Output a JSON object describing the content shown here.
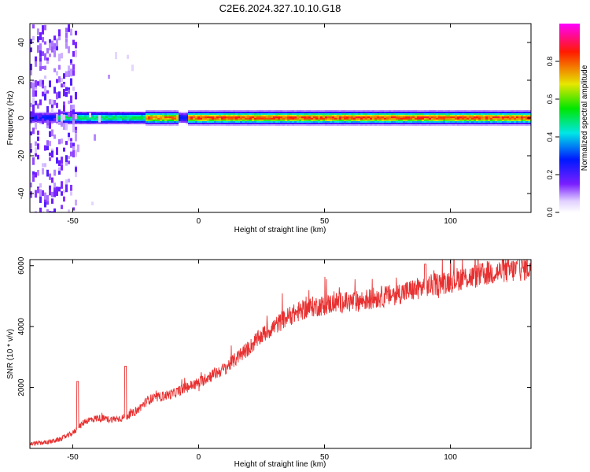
{
  "title": "C2E6.2024.327.10.10.G18",
  "chart_data": [
    {
      "type": "heatmap",
      "title": "C2E6.2024.327.10.10.G18",
      "xlabel": "Height of straight line (km)",
      "ylabel": "Frequency (Hz)",
      "xlim": [
        -67,
        132
      ],
      "ylim": [
        -50,
        50
      ],
      "xticks": [
        "-50",
        "0",
        "50",
        "100"
      ],
      "yticks": [
        "-40",
        "-20",
        "0",
        "20",
        "40"
      ],
      "colorbar": {
        "label": "Normalized spectral amplitude",
        "range": [
          0,
          1
        ],
        "ticks": [
          "0.0",
          "0.2",
          "0.4",
          "0.6",
          "0.8"
        ],
        "colormap": "rainbow (violet-blue-cyan-green-yellow-red-magenta)"
      },
      "signal_band": {
        "center_frequency_hz": 0.5,
        "half_width_hz": 3,
        "segments": [
          {
            "x_start": -56,
            "x_end": -22,
            "peak_amplitude": 0.55
          },
          {
            "x_start": -22,
            "x_end": -8,
            "peak_amplitude": 0.85
          },
          {
            "x_start": -5,
            "x_end": 132,
            "peak_amplitude": 0.9
          }
        ]
      },
      "noise_region": {
        "x_start": -67,
        "x_end": -49,
        "amplitude": 0.15
      }
    },
    {
      "type": "line",
      "xlabel": "Height of straight line (km)",
      "ylabel": "SNR (10 * v/v)",
      "xlim": [
        -67,
        132
      ],
      "ylim": [
        0,
        6200
      ],
      "xticks": [
        "-50",
        "0",
        "50",
        "100"
      ],
      "yticks": [
        "2000",
        "4000",
        "6000"
      ],
      "color": "#e83030",
      "trend": {
        "x": [
          -67,
          -60,
          -55,
          -50,
          -45,
          -40,
          -35,
          -30,
          -25,
          -20,
          -15,
          -10,
          -5,
          0,
          5,
          10,
          15,
          20,
          25,
          30,
          35,
          40,
          45,
          50,
          55,
          60,
          65,
          70,
          75,
          80,
          85,
          90,
          95,
          100,
          105,
          110,
          115,
          120,
          125,
          132
        ],
        "y": [
          150,
          200,
          300,
          500,
          900,
          1000,
          950,
          1000,
          1200,
          1600,
          1700,
          1800,
          2000,
          2150,
          2400,
          2600,
          2950,
          3300,
          3700,
          4000,
          4300,
          4500,
          4650,
          4700,
          4800,
          4800,
          4850,
          4950,
          5000,
          5100,
          5200,
          5300,
          5400,
          5500,
          5600,
          5650,
          5750,
          5800,
          5850,
          5950
        ]
      },
      "spikes": [
        {
          "x": -48,
          "y": 2200
        },
        {
          "x": -29,
          "y": 2700
        },
        {
          "x": 90,
          "y": 6050
        },
        {
          "x": 127,
          "y": 6200
        }
      ]
    }
  ]
}
